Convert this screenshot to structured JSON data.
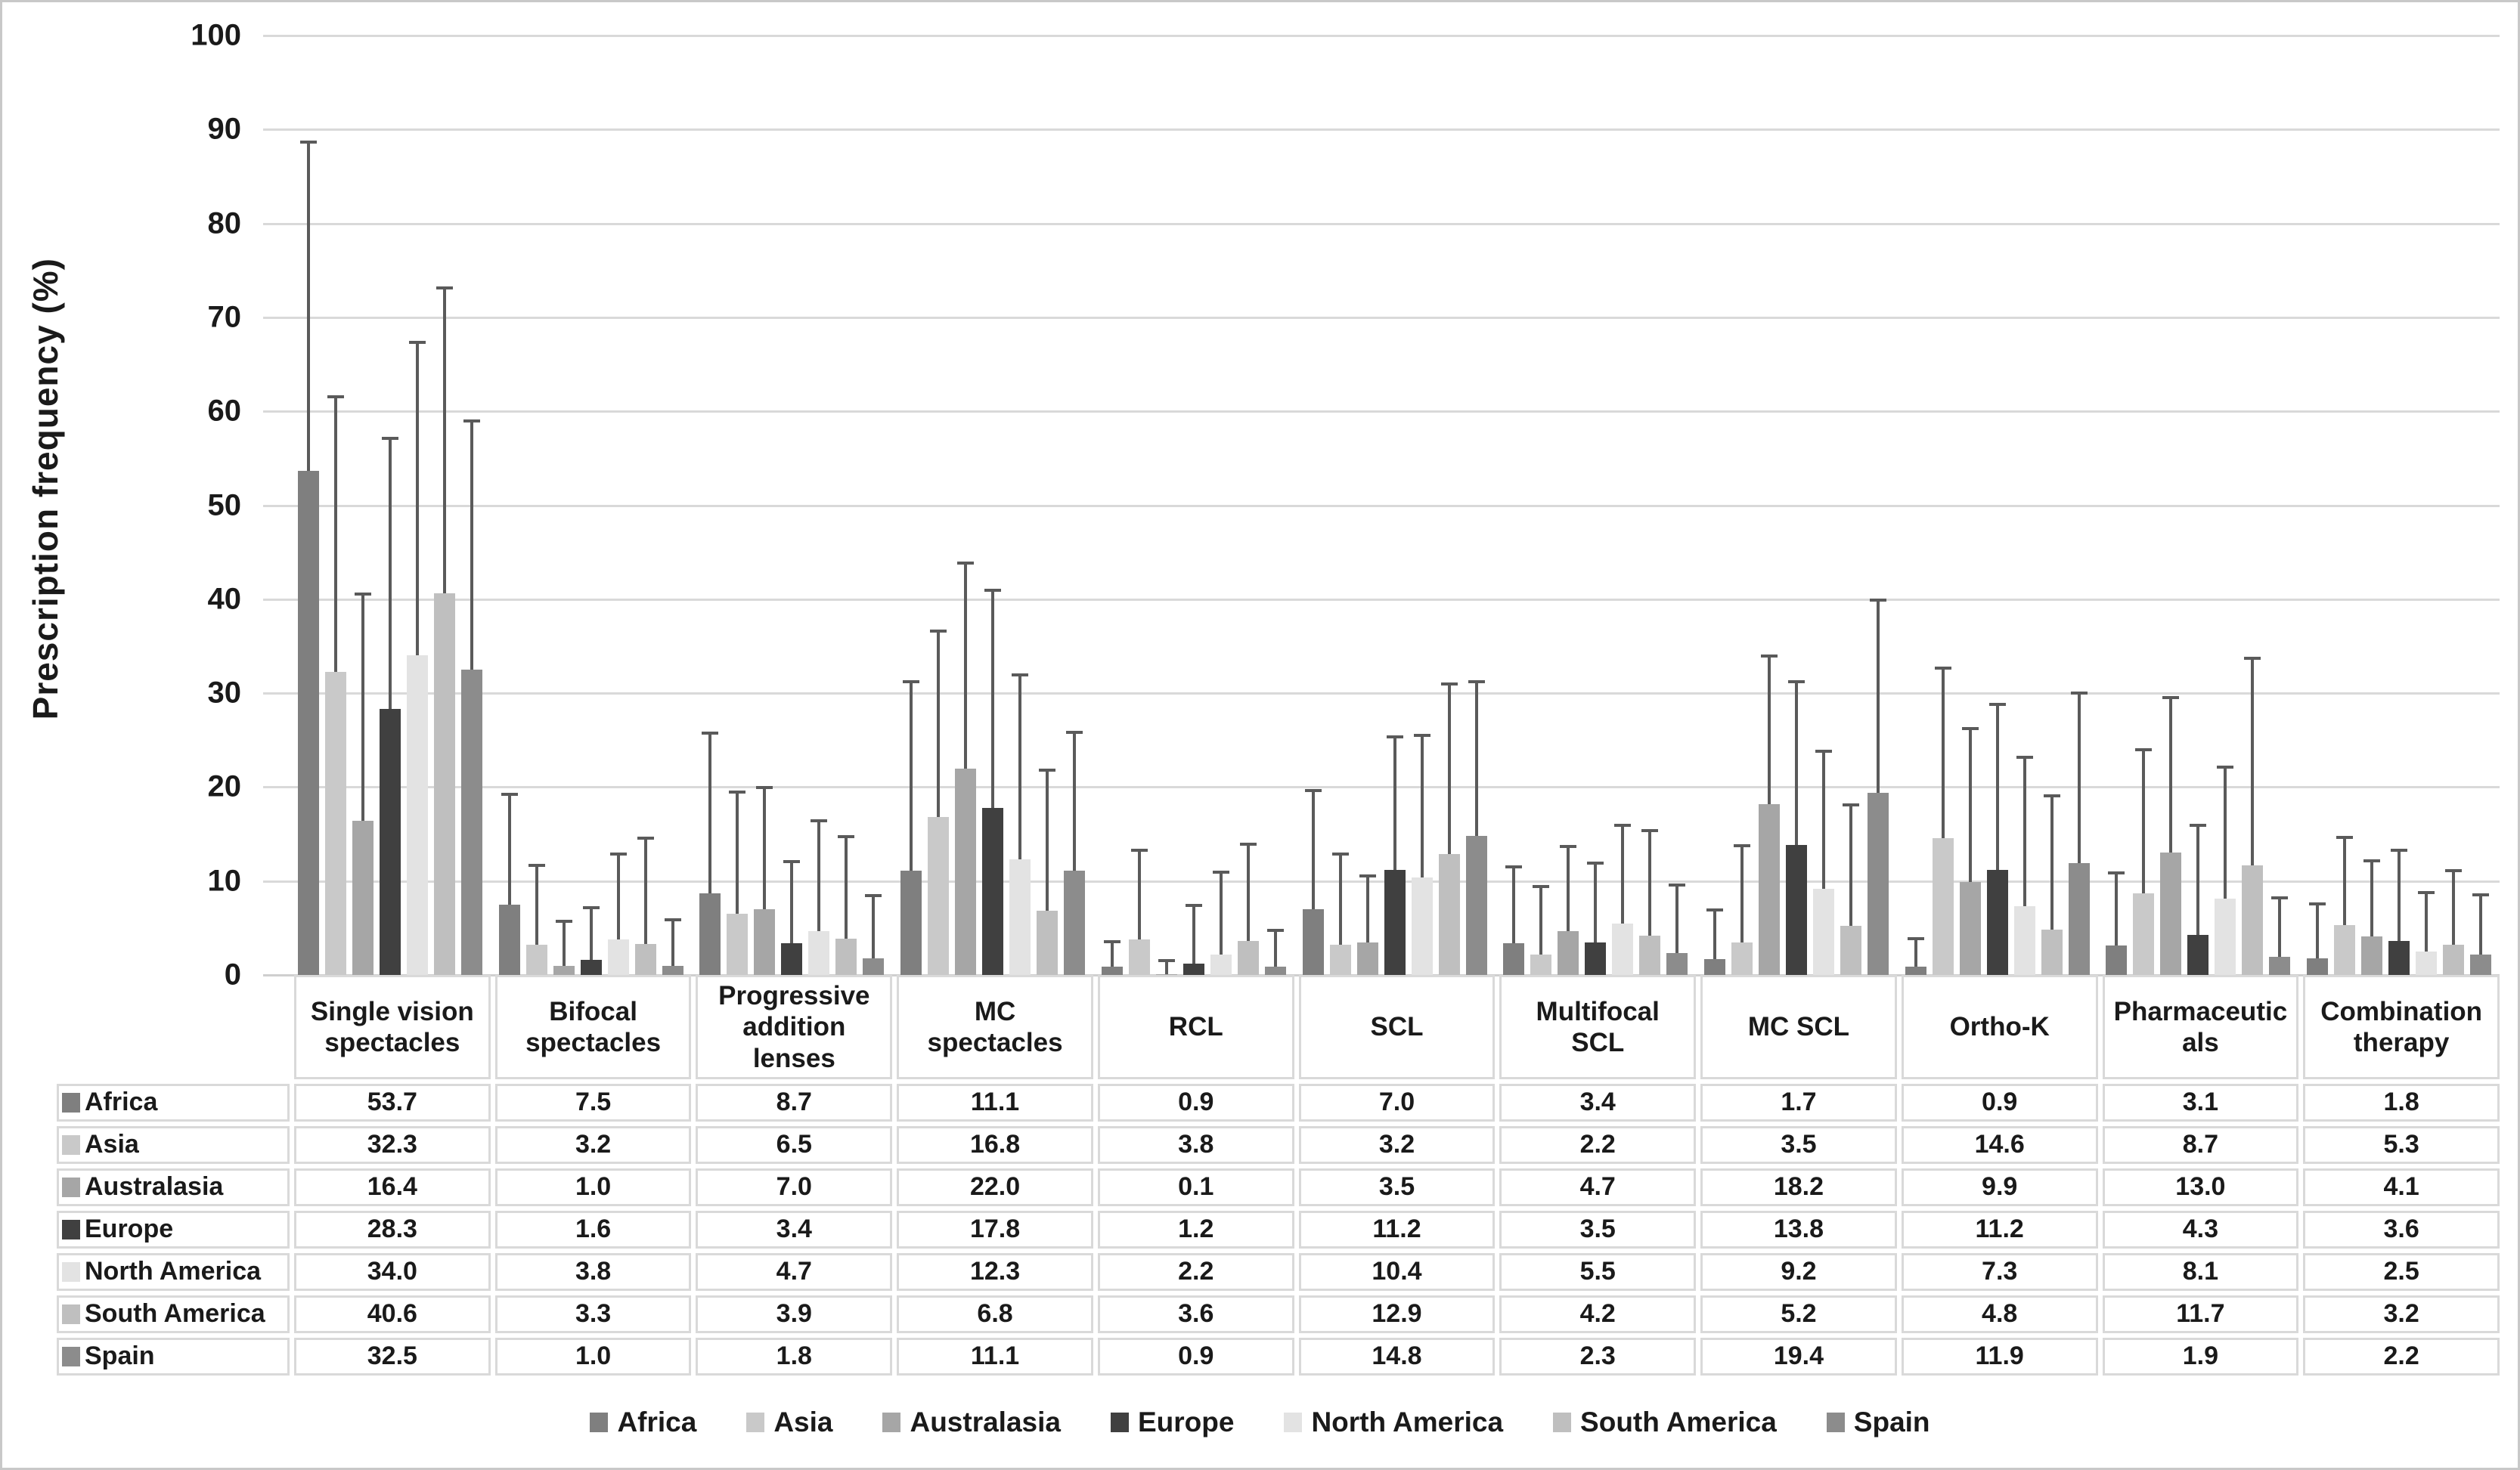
{
  "chart_data": {
    "type": "bar",
    "title": "",
    "xlabel": "",
    "ylabel": "Prescription frequency (%)",
    "ylim": [
      0,
      100
    ],
    "y_ticks": [
      100,
      90,
      80,
      70,
      60,
      50,
      40,
      30,
      20,
      10,
      0
    ],
    "grid": true,
    "legend_position": "bottom",
    "error_bars": "upper standard-deviation whiskers with end caps",
    "categories": [
      "Single vision spectacles",
      "Bifocal spectacles",
      "Progressive addition lenses",
      "MC spectacles",
      "RCL",
      "SCL",
      "Multifocal SCL",
      "MC SCL",
      "Ortho-K",
      "Pharmaceuticals",
      "Combination therapy"
    ],
    "series": [
      {
        "name": "Africa",
        "color": "#7f7f7f",
        "values": [
          53.7,
          7.5,
          8.7,
          11.1,
          0.9,
          7.0,
          3.4,
          1.7,
          0.9,
          3.1,
          1.8
        ],
        "err_top": [
          88.8,
          19.4,
          25.9,
          31.4,
          3.7,
          19.8,
          11.7,
          7.1,
          4.0,
          11.0,
          7.7
        ]
      },
      {
        "name": "Asia",
        "color": "#c9c9c9",
        "values": [
          32.3,
          3.2,
          6.5,
          16.8,
          3.8,
          3.2,
          2.2,
          3.5,
          14.6,
          8.7,
          5.3
        ],
        "err_top": [
          61.7,
          11.8,
          19.6,
          36.8,
          13.4,
          13.0,
          9.6,
          13.9,
          32.8,
          24.1,
          14.8
        ]
      },
      {
        "name": "Australasia",
        "color": "#a6a6a6",
        "values": [
          16.4,
          1.0,
          7.0,
          22.0,
          0.1,
          3.5,
          4.7,
          18.2,
          9.9,
          13.0,
          4.1
        ],
        "err_top": [
          40.7,
          5.9,
          20.1,
          44.0,
          1.7,
          10.7,
          13.8,
          34.1,
          26.4,
          29.7,
          12.3
        ]
      },
      {
        "name": "Europe",
        "color": "#404040",
        "values": [
          28.3,
          1.6,
          3.4,
          17.8,
          1.2,
          11.2,
          3.5,
          13.8,
          11.2,
          4.3,
          3.6
        ],
        "err_top": [
          57.3,
          7.3,
          12.2,
          41.1,
          7.6,
          25.5,
          12.1,
          31.4,
          29.0,
          16.1,
          13.4
        ]
      },
      {
        "name": "North America",
        "color": "#e3e3e3",
        "values": [
          34.0,
          3.8,
          4.7,
          12.3,
          2.2,
          10.4,
          5.5,
          9.2,
          7.3,
          8.1,
          2.5
        ],
        "err_top": [
          67.5,
          13.0,
          16.6,
          32.1,
          11.1,
          25.7,
          16.1,
          24.0,
          23.3,
          22.3,
          8.9
        ]
      },
      {
        "name": "South America",
        "color": "#bfbfbf",
        "values": [
          40.6,
          3.3,
          3.9,
          6.8,
          3.6,
          12.9,
          4.2,
          5.2,
          4.8,
          11.7,
          3.2
        ],
        "err_top": [
          73.3,
          14.7,
          14.9,
          22.0,
          14.1,
          31.1,
          15.5,
          18.3,
          19.2,
          33.9,
          11.3
        ]
      },
      {
        "name": "Spain",
        "color": "#8c8c8c",
        "values": [
          32.5,
          1.0,
          1.8,
          11.1,
          0.9,
          14.8,
          2.3,
          19.4,
          11.9,
          1.9,
          2.2
        ],
        "err_top": [
          59.1,
          6.0,
          8.6,
          26.0,
          4.9,
          31.4,
          9.7,
          40.1,
          30.2,
          8.4,
          8.7
        ]
      }
    ]
  },
  "colors": {
    "gridline": "#d9d9d9",
    "error_bar": "#5a5a5a",
    "table_border": "#d9d9d9",
    "figure_border": "#c8c8c8",
    "text": "#1a1a1a"
  }
}
